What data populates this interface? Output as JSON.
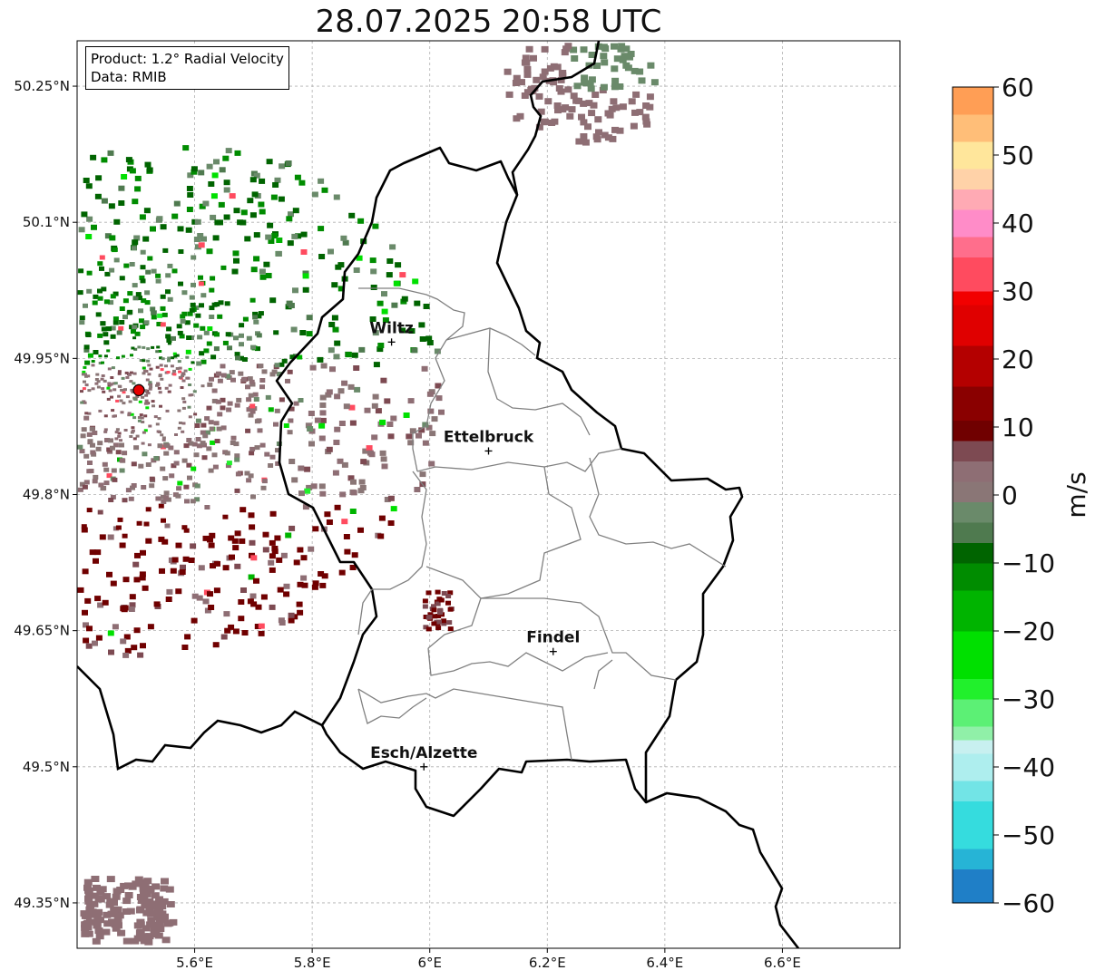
{
  "title": "28.07.2025 20:58 UTC",
  "info": {
    "product": "Product: 1.2° Radial Velocity",
    "source": "Data: RMIB"
  },
  "map": {
    "lon_range": [
      5.4,
      6.8
    ],
    "lat_range": [
      49.3,
      50.3
    ],
    "x_ticks": [
      {
        "value": 5.6,
        "label": "5.6°E"
      },
      {
        "value": 5.8,
        "label": "5.8°E"
      },
      {
        "value": 6.0,
        "label": "6°E"
      },
      {
        "value": 6.2,
        "label": "6.2°E"
      },
      {
        "value": 6.4,
        "label": "6.4°E"
      },
      {
        "value": 6.6,
        "label": "6.6°E"
      }
    ],
    "y_ticks": [
      {
        "value": 50.25,
        "label": "50.25°N"
      },
      {
        "value": 50.1,
        "label": "50.1°N"
      },
      {
        "value": 49.95,
        "label": "49.95°N"
      },
      {
        "value": 49.8,
        "label": "49.8°N"
      },
      {
        "value": 49.65,
        "label": "49.65°N"
      },
      {
        "value": 49.5,
        "label": "49.5°N"
      },
      {
        "value": 49.35,
        "label": "49.35°N"
      }
    ],
    "grid": true,
    "radar_site": {
      "lon": 5.505,
      "lat": 49.915,
      "color": "#e60000"
    },
    "cities": [
      {
        "name": "Wiltz",
        "lon": 5.935,
        "lat": 49.968
      },
      {
        "name": "Ettelbruck",
        "lon": 6.1,
        "lat": 49.848
      },
      {
        "name": "Findel",
        "lon": 6.21,
        "lat": 49.627
      },
      {
        "name": "Esch/Alzette",
        "lon": 5.99,
        "lat": 49.5
      }
    ]
  },
  "colorbar": {
    "min": -60,
    "max": 60,
    "label": "m/s",
    "ticks": [
      {
        "value": 60,
        "label": "60"
      },
      {
        "value": 50,
        "label": "50"
      },
      {
        "value": 40,
        "label": "40"
      },
      {
        "value": 30,
        "label": "30"
      },
      {
        "value": 20,
        "label": "20"
      },
      {
        "value": 10,
        "label": "10"
      },
      {
        "value": 0,
        "label": "0"
      },
      {
        "value": -10,
        "label": "−10"
      },
      {
        "value": -20,
        "label": "−20"
      },
      {
        "value": -30,
        "label": "−30"
      },
      {
        "value": -40,
        "label": "−40"
      },
      {
        "value": -50,
        "label": "−50"
      },
      {
        "value": -60,
        "label": "−60"
      }
    ],
    "stops": [
      {
        "from": -60,
        "to": -55,
        "color": "#1f7fc7"
      },
      {
        "from": -55,
        "to": -52,
        "color": "#26b4d6"
      },
      {
        "from": -52,
        "to": -45,
        "color": "#35dcde"
      },
      {
        "from": -45,
        "to": -42,
        "color": "#72e4e6"
      },
      {
        "from": -42,
        "to": -38,
        "color": "#aeeeee"
      },
      {
        "from": -38,
        "to": -36,
        "color": "#c8f0f0"
      },
      {
        "from": -36,
        "to": -34,
        "color": "#90f0a8"
      },
      {
        "from": -34,
        "to": -30,
        "color": "#5cf075"
      },
      {
        "from": -30,
        "to": -27,
        "color": "#21f02c"
      },
      {
        "from": -27,
        "to": -20,
        "color": "#00e000"
      },
      {
        "from": -20,
        "to": -14,
        "color": "#00b400"
      },
      {
        "from": -14,
        "to": -10,
        "color": "#008c00"
      },
      {
        "from": -10,
        "to": -7,
        "color": "#006400"
      },
      {
        "from": -7,
        "to": -4,
        "color": "#4f7a4f"
      },
      {
        "from": -4,
        "to": -1,
        "color": "#6a8a6a"
      },
      {
        "from": -1,
        "to": 2,
        "color": "#8a7676"
      },
      {
        "from": 2,
        "to": 5,
        "color": "#8e6e74"
      },
      {
        "from": 5,
        "to": 8,
        "color": "#7d4a52"
      },
      {
        "from": 8,
        "to": 11,
        "color": "#700000"
      },
      {
        "from": 11,
        "to": 16,
        "color": "#8a0000"
      },
      {
        "from": 16,
        "to": 22,
        "color": "#b40000"
      },
      {
        "from": 22,
        "to": 28,
        "color": "#e00000"
      },
      {
        "from": 28,
        "to": 30,
        "color": "#f20000"
      },
      {
        "from": 30,
        "to": 35,
        "color": "#ff4b5f"
      },
      {
        "from": 35,
        "to": 38,
        "color": "#ff6e8c"
      },
      {
        "from": 38,
        "to": 42,
        "color": "#ff8cc8"
      },
      {
        "from": 42,
        "to": 45,
        "color": "#ffaab4"
      },
      {
        "from": 45,
        "to": 48,
        "color": "#ffd2a8"
      },
      {
        "from": 48,
        "to": 52,
        "color": "#ffe69b"
      },
      {
        "from": 52,
        "to": 56,
        "color": "#ffbe78"
      },
      {
        "from": 56,
        "to": 60,
        "color": "#ff9e55"
      }
    ]
  },
  "chart_data": {
    "type": "heatmap",
    "title": "28.07.2025 20:58 UTC",
    "xlabel": "",
    "ylabel": "",
    "xlim": [
      5.4,
      6.8
    ],
    "ylim": [
      49.3,
      50.3
    ],
    "colorbar_label": "m/s",
    "colorbar_range": [
      -60,
      60
    ]
  }
}
